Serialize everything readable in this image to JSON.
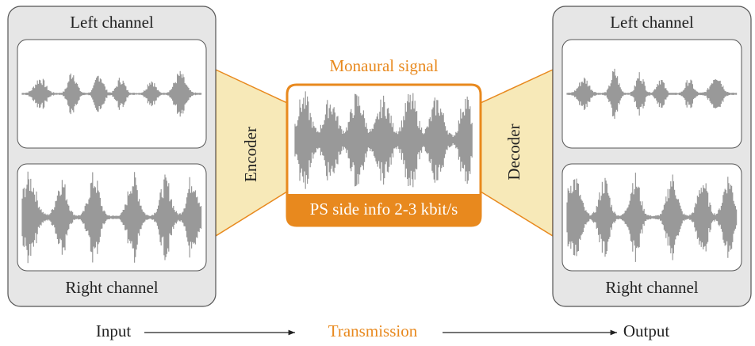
{
  "input_panel": {
    "top_label": "Left channel",
    "bottom_label": "Right channel"
  },
  "encoder": {
    "label": "Encoder"
  },
  "transmission_panel": {
    "title": "Monaural signal",
    "side_info": "PS side info 2-3 kbit/s"
  },
  "decoder": {
    "label": "Decoder"
  },
  "output_panel": {
    "top_label": "Left channel",
    "bottom_label": "Right channel"
  },
  "flow": {
    "input": "Input",
    "transmission": "Transmission",
    "output": "Output"
  }
}
